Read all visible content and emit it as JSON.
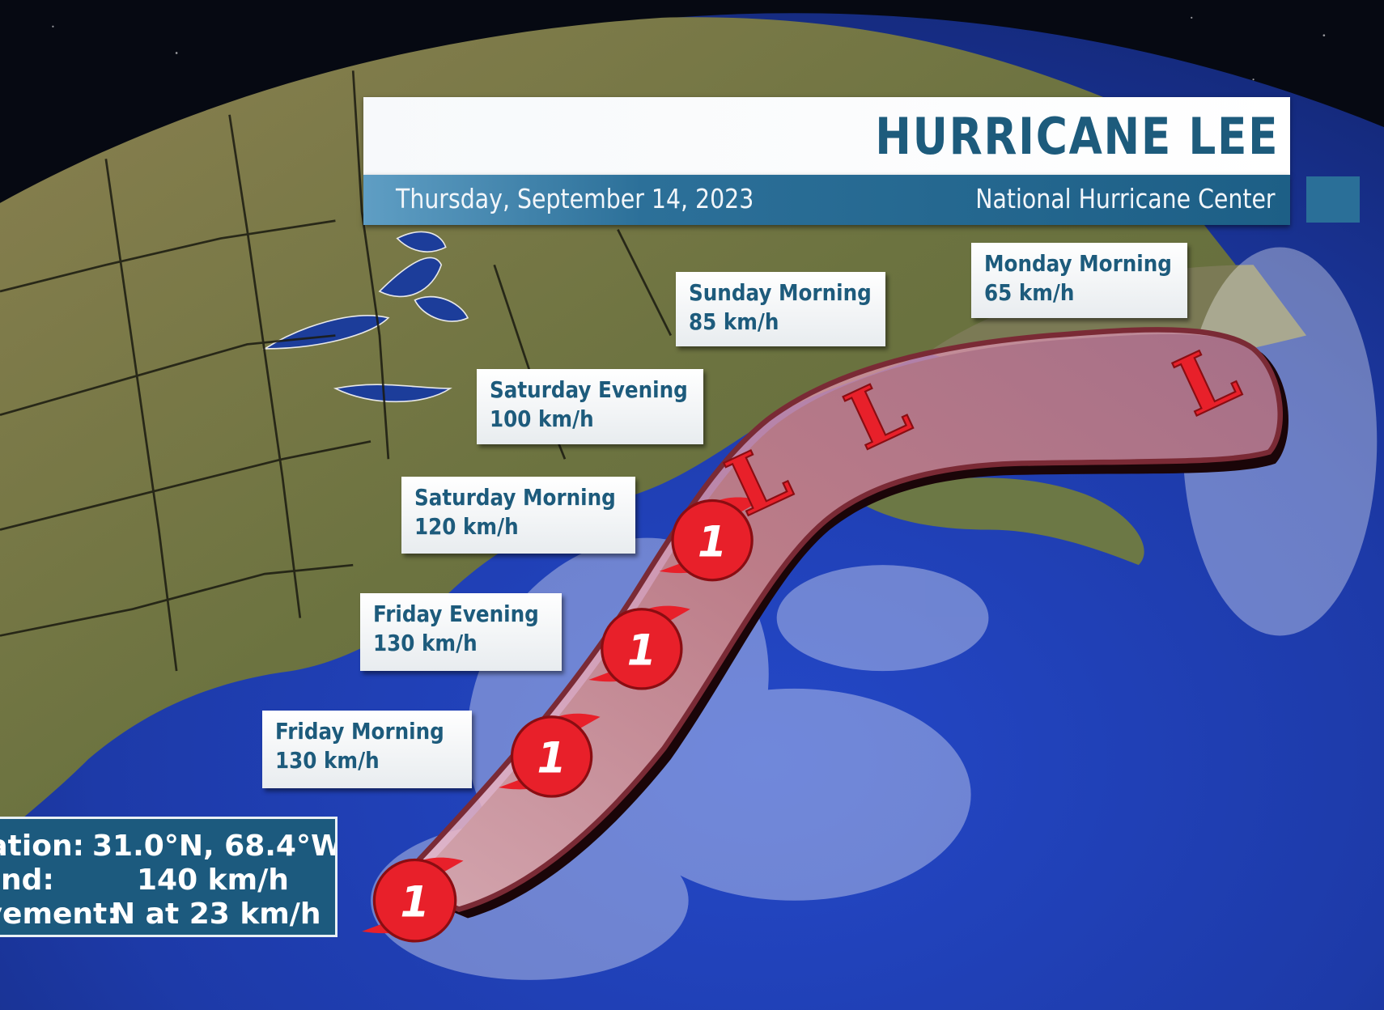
{
  "header": {
    "title": "HURRICANE LEE",
    "date": "Thursday, September 14, 2023",
    "source": "National Hurricane Center"
  },
  "forecast_points": [
    {
      "time": "Friday Morning",
      "wind": "130 km/h",
      "symbol": "hurricane",
      "category": "1"
    },
    {
      "time": "Friday Evening",
      "wind": "130 km/h",
      "symbol": "hurricane",
      "category": "1"
    },
    {
      "time": "Saturday Morning",
      "wind": "120 km/h",
      "symbol": "hurricane",
      "category": "1"
    },
    {
      "time": "Saturday Evening",
      "wind": "100 km/h",
      "symbol": "low",
      "category": "L"
    },
    {
      "time": "Sunday Morning",
      "wind": "85 km/h",
      "symbol": "low",
      "category": "L"
    },
    {
      "time": "Monday Morning",
      "wind": "65 km/h",
      "symbol": "low",
      "category": "L"
    }
  ],
  "current": {
    "location_label": "Location:",
    "location_value": "31.0°N, 68.4°W",
    "wind_label": "Wind:",
    "wind_value": "140 km/h",
    "movement_label": "Movement:",
    "movement_value": "N at 23 km/h",
    "symbol": "hurricane",
    "category": "1"
  },
  "colors": {
    "brand_blue": "#1d5b7c",
    "cone_fill": "#e8a0b0",
    "storm_red": "#e8202a",
    "ocean": "#1f3fb0",
    "land": "#6f7440"
  }
}
